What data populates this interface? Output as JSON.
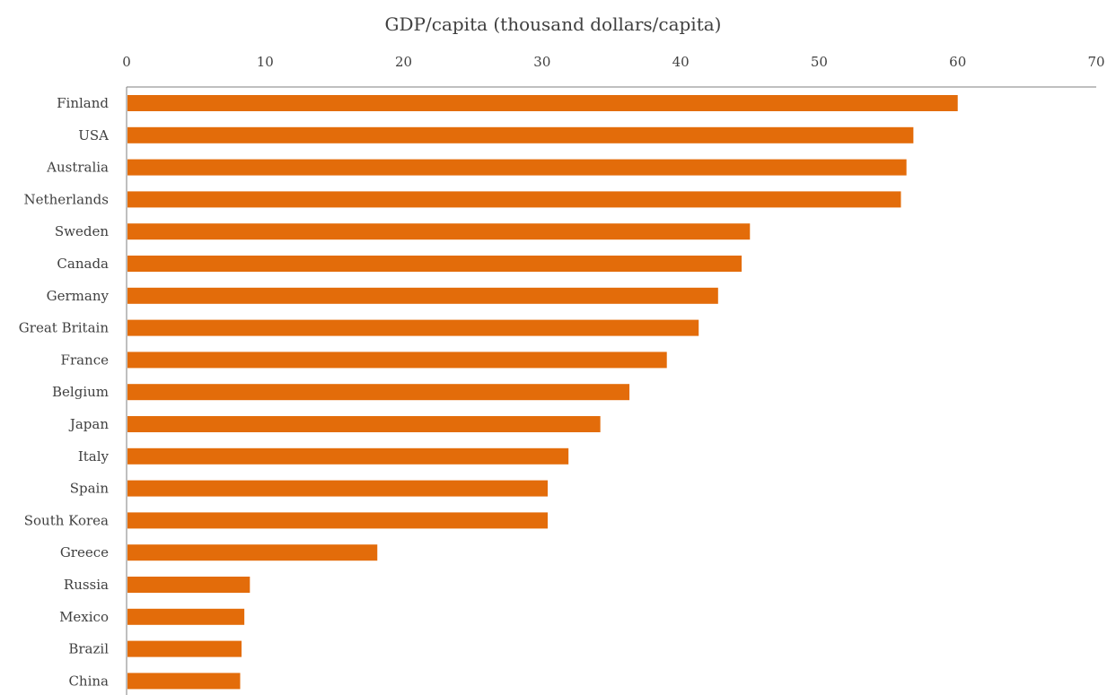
{
  "chart_data": {
    "type": "bar",
    "orientation": "horizontal",
    "title": "",
    "xlabel": "GDP/capita (thousand dollars/capita)",
    "ylabel": "",
    "xlim": [
      0,
      70
    ],
    "xticks": [
      "0",
      "10",
      "20",
      "30",
      "40",
      "50",
      "60",
      "70"
    ],
    "x_axis_position": "top",
    "grid": false,
    "legend": "none",
    "bar_color": "#E36C0A",
    "categories": [
      "Finland",
      "USA",
      "Australia",
      "Netherlands",
      "Sweden",
      "Canada",
      "Germany",
      "Great Britain",
      "France",
      "Belgium",
      "Japan",
      "Italy",
      "Spain",
      "South Korea",
      "Greece",
      "Russia",
      "Mexico",
      "Brazil",
      "China"
    ],
    "values": [
      60.0,
      56.8,
      56.3,
      55.9,
      45.0,
      44.4,
      42.7,
      41.3,
      39.0,
      36.3,
      34.2,
      31.9,
      30.4,
      30.4,
      18.1,
      8.9,
      8.5,
      8.3,
      8.2
    ]
  }
}
